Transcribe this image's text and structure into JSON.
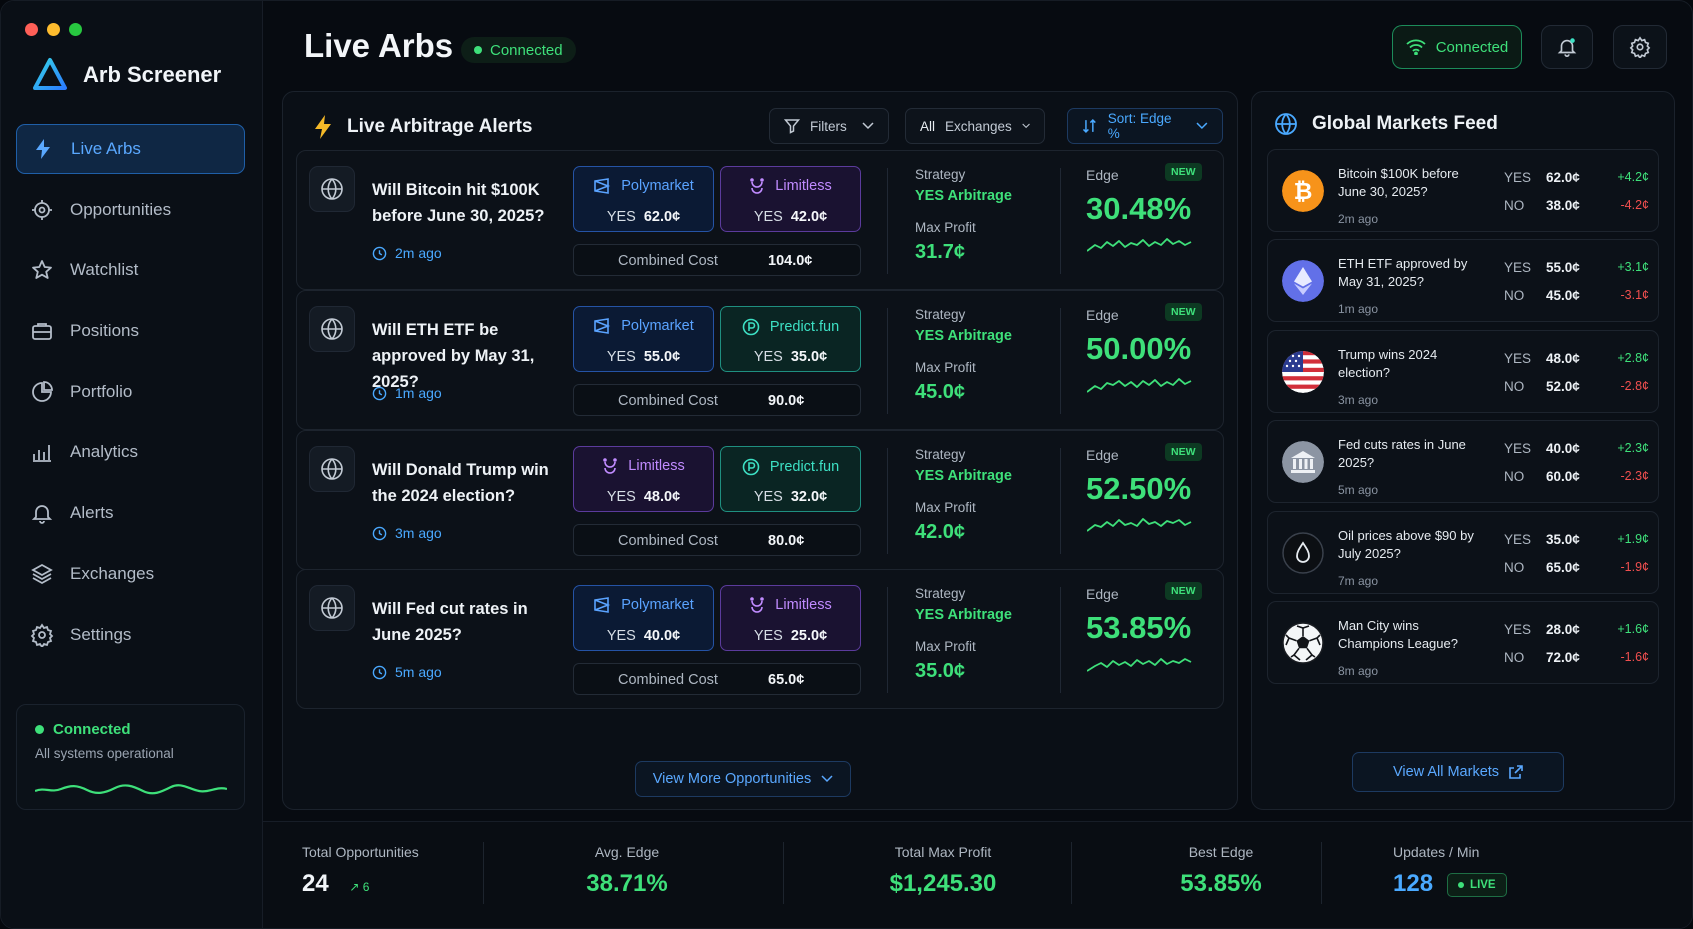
{
  "window": {
    "dots": [
      "#ff5f57",
      "#febc2e",
      "#28c840"
    ]
  },
  "brand": {
    "name": "Arb Screener"
  },
  "sidebar": {
    "items": [
      {
        "label": "Live Arbs",
        "icon": "bolt-icon",
        "active": true
      },
      {
        "label": "Opportunities",
        "icon": "target-icon"
      },
      {
        "label": "Watchlist",
        "icon": "star-icon"
      },
      {
        "label": "Positions",
        "icon": "briefcase-icon"
      },
      {
        "label": "Portfolio",
        "icon": "pie-chart-icon"
      },
      {
        "label": "Analytics",
        "icon": "bar-chart-icon"
      },
      {
        "label": "Alerts",
        "icon": "bell-icon"
      },
      {
        "label": "Exchanges",
        "icon": "layers-icon"
      },
      {
        "label": "Settings",
        "icon": "gear-icon"
      }
    ],
    "status": {
      "label": "Connected",
      "sub": "All systems operational"
    }
  },
  "header": {
    "title": "Live Arbs",
    "status_pill": "Connected",
    "connected_button": "Connected"
  },
  "alerts": {
    "title": "Live Arbitrage Alerts",
    "filters_label": "Filters",
    "exchanges_all": "All",
    "exchanges_label": "Exchanges",
    "sort_label": "Sort: Edge %",
    "strategy_label": "Strategy",
    "max_profit_label": "Max Profit",
    "edge_label": "Edge",
    "new_label": "NEW",
    "combined_label": "Combined Cost",
    "yes_label": "YES",
    "more_label": "View More Opportunities",
    "cards": [
      {
        "question": "Will Bitcoin hit $100K before June 30, 2025?",
        "ago": "2m ago",
        "ex1": {
          "name": "Polymarket",
          "kind": "poly",
          "price": "62.0¢"
        },
        "ex2": {
          "name": "Limitless",
          "kind": "lim",
          "price": "42.0¢"
        },
        "combined": "104.0¢",
        "strategy": "YES Arbitrage",
        "max_profit": "31.7¢",
        "edge": "30.48%"
      },
      {
        "question": "Will ETH ETF be approved by May 31, 2025?",
        "ago": "1m ago",
        "ex1": {
          "name": "Polymarket",
          "kind": "poly",
          "price": "55.0¢"
        },
        "ex2": {
          "name": "Predict.fun",
          "kind": "pred",
          "price": "35.0¢"
        },
        "combined": "90.0¢",
        "strategy": "YES Arbitrage",
        "max_profit": "45.0¢",
        "edge": "50.00%"
      },
      {
        "question": "Will Donald Trump win the 2024 election?",
        "ago": "3m ago",
        "ex1": {
          "name": "Limitless",
          "kind": "lim",
          "price": "48.0¢"
        },
        "ex2": {
          "name": "Predict.fun",
          "kind": "pred",
          "price": "32.0¢"
        },
        "combined": "80.0¢",
        "strategy": "YES Arbitrage",
        "max_profit": "42.0¢",
        "edge": "52.50%"
      },
      {
        "question": "Will Fed cut rates in June 2025?",
        "ago": "5m ago",
        "ex1": {
          "name": "Polymarket",
          "kind": "poly",
          "price": "40.0¢"
        },
        "ex2": {
          "name": "Limitless",
          "kind": "lim",
          "price": "25.0¢"
        },
        "combined": "65.0¢",
        "strategy": "YES Arbitrage",
        "max_profit": "35.0¢",
        "edge": "53.85%"
      }
    ]
  },
  "feed": {
    "title": "Global Markets Feed",
    "yes_label": "YES",
    "no_label": "NO",
    "view_all": "View All Markets",
    "items": [
      {
        "question": "Bitcoin $100K before June 30, 2025?",
        "ago": "2m ago",
        "icon": "bitcoin-icon",
        "yes": "62.0¢",
        "yes_chg": "+4.2¢",
        "no": "38.0¢",
        "no_chg": "-4.2¢"
      },
      {
        "question": "ETH ETF approved by May 31, 2025?",
        "ago": "1m ago",
        "icon": "ethereum-icon",
        "yes": "55.0¢",
        "yes_chg": "+3.1¢",
        "no": "45.0¢",
        "no_chg": "-3.1¢"
      },
      {
        "question": "Trump wins 2024 election?",
        "ago": "3m ago",
        "icon": "us-flag-icon",
        "yes": "48.0¢",
        "yes_chg": "+2.8¢",
        "no": "52.0¢",
        "no_chg": "-2.8¢"
      },
      {
        "question": "Fed cuts rates in June 2025?",
        "ago": "5m ago",
        "icon": "bank-icon",
        "yes": "40.0¢",
        "yes_chg": "+2.3¢",
        "no": "60.0¢",
        "no_chg": "-2.3¢"
      },
      {
        "question": "Oil prices above $90 by July 2025?",
        "ago": "7m ago",
        "icon": "oil-drop-icon",
        "yes": "35.0¢",
        "yes_chg": "+1.9¢",
        "no": "65.0¢",
        "no_chg": "-1.9¢"
      },
      {
        "question": "Man City wins Champions League?",
        "ago": "8m ago",
        "icon": "soccer-ball-icon",
        "yes": "28.0¢",
        "yes_chg": "+1.6¢",
        "no": "72.0¢",
        "no_chg": "-1.6¢"
      }
    ]
  },
  "stats": {
    "total_label": "Total Opportunities",
    "total": "24",
    "total_delta": "6",
    "avg_label": "Avg. Edge",
    "avg": "38.71%",
    "profit_label": "Total Max Profit",
    "profit": "$1,245.30",
    "best_label": "Best Edge",
    "best": "53.85%",
    "updates_label": "Updates / Min",
    "updates": "128",
    "live_label": "LIVE"
  },
  "colors": {
    "accent": "#3ee07a",
    "blue": "#4aa9ff",
    "poly": "#5aa3ff",
    "limitless": "#c08bff",
    "predict": "#3de0c4"
  }
}
